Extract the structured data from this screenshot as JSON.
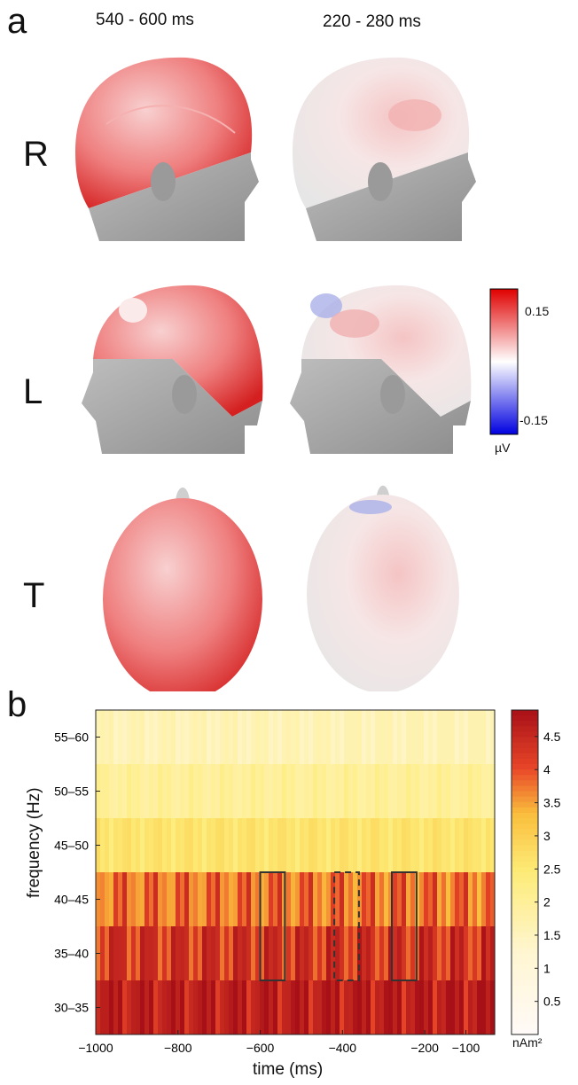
{
  "panel_a": {
    "label": "a",
    "columns": [
      "540 - 600 ms",
      "220 - 280 ms"
    ],
    "rows": [
      "R",
      "L",
      "T"
    ],
    "colorbar": {
      "max_label": "0.15",
      "min_label": "-0.15",
      "unit": "µV",
      "range": [
        -0.15,
        0.15
      ],
      "colors": {
        "positive": "#e00000",
        "neutral": "#ffffff",
        "negative": "#0000e0"
      }
    }
  },
  "panel_b": {
    "label": "b",
    "xlabel": "time (ms)",
    "ylabel": "frequency (Hz)",
    "colorbar_unit": "nAm²",
    "colorbar_ticks": [
      "4.5",
      "4",
      "3.5",
      "3",
      "2.5",
      "2",
      "1.5",
      "1",
      "0.5"
    ]
  },
  "chart_data": {
    "type": "heatmap",
    "x_tick_labels": [
      "−1000",
      "−800",
      "−600",
      "−400",
      "−200",
      "−100"
    ],
    "y_tick_labels": [
      "55–60",
      "50–55",
      "45–50",
      "40–45",
      "35–40",
      "30–35"
    ],
    "xlim": [
      -1000,
      -30
    ],
    "clim": [
      0,
      4.9
    ],
    "rows": [
      {
        "band": "55–60",
        "mean": 1.6
      },
      {
        "band": "50–55",
        "mean": 2.0
      },
      {
        "band": "45–50",
        "mean": 2.6
      },
      {
        "band": "40–45",
        "mean": 3.8
      },
      {
        "band": "35–40",
        "mean": 4.3
      },
      {
        "band": "30–35",
        "mean": 4.7
      }
    ],
    "highlight_windows": [
      {
        "from": -600,
        "to": -540,
        "style": "solid"
      },
      {
        "from": -420,
        "to": -360,
        "style": "dashed"
      },
      {
        "from": -280,
        "to": -220,
        "style": "solid"
      }
    ]
  }
}
